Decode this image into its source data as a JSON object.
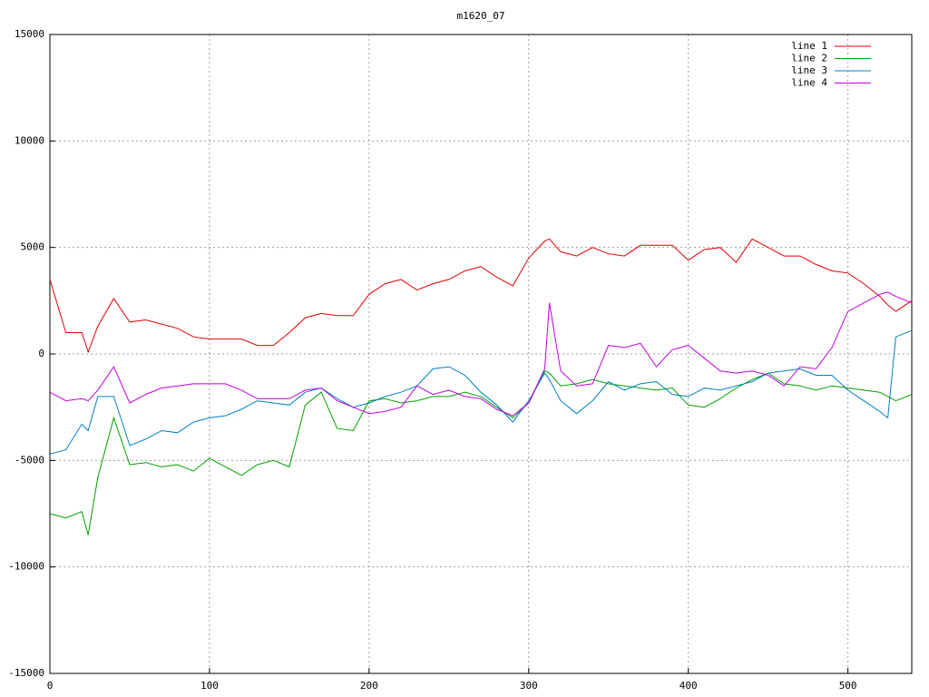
{
  "chart_data": {
    "type": "line",
    "title": "m1620_07",
    "x": [
      0,
      10,
      20,
      24,
      30,
      40,
      50,
      60,
      70,
      80,
      90,
      100,
      110,
      120,
      130,
      140,
      150,
      160,
      170,
      180,
      190,
      200,
      210,
      220,
      230,
      240,
      250,
      260,
      270,
      280,
      290,
      300,
      310,
      313,
      320,
      330,
      340,
      350,
      360,
      370,
      380,
      390,
      400,
      410,
      420,
      430,
      440,
      450,
      460,
      470,
      480,
      490,
      500,
      510,
      520,
      525,
      530,
      540
    ],
    "series": [
      {
        "name": "line 1",
        "color": "#e00000",
        "values": [
          3500,
          1000,
          1000,
          100,
          1300,
          2600,
          1500,
          1600,
          1400,
          1200,
          800,
          700,
          700,
          700,
          400,
          400,
          1000,
          1700,
          1900,
          1800,
          1800,
          2800,
          3300,
          3500,
          3000,
          3300,
          3500,
          3900,
          4100,
          3600,
          3200,
          4500,
          5300,
          5400,
          4800,
          4600,
          5000,
          4700,
          4600,
          5100,
          5100,
          5100,
          4400,
          4900,
          5000,
          4300,
          5400,
          5000,
          4600,
          4600,
          4200,
          3900,
          3800,
          3300,
          2700,
          2300,
          2000,
          2500
        ]
      },
      {
        "name": "line 2",
        "color": "#00a000",
        "values": [
          -7500,
          -7700,
          -7400,
          -8500,
          -5800,
          -3000,
          -5200,
          -5100,
          -5300,
          -5200,
          -5500,
          -4900,
          -5300,
          -5700,
          -5200,
          -5000,
          -5300,
          -2400,
          -1800,
          -3500,
          -3600,
          -2200,
          -2100,
          -2300,
          -2200,
          -2000,
          -2000,
          -1800,
          -2000,
          -2500,
          -3000,
          -2300,
          -800,
          -900,
          -1500,
          -1400,
          -1200,
          -1400,
          -1500,
          -1600,
          -1700,
          -1600,
          -2400,
          -2500,
          -2100,
          -1600,
          -1200,
          -900,
          -1400,
          -1500,
          -1700,
          -1500,
          -1600,
          -1700,
          -1800,
          -2000,
          -2200,
          -1900
        ]
      },
      {
        "name": "line 3",
        "color": "#0080c0",
        "values": [
          -4700,
          -4500,
          -3300,
          -3600,
          -2000,
          -2000,
          -4300,
          -4000,
          -3600,
          -3700,
          -3200,
          -3000,
          -2900,
          -2600,
          -2200,
          -2300,
          -2400,
          -1800,
          -1600,
          -2100,
          -2500,
          -2300,
          -2000,
          -1800,
          -1500,
          -700,
          -600,
          -1000,
          -1800,
          -2400,
          -3200,
          -2200,
          -900,
          -1200,
          -2200,
          -2800,
          -2200,
          -1300,
          -1700,
          -1400,
          -1300,
          -1900,
          -2000,
          -1600,
          -1700,
          -1500,
          -1300,
          -900,
          -800,
          -700,
          -1000,
          -1000,
          -1700,
          -2200,
          -2700,
          -3000,
          800,
          1100
        ]
      },
      {
        "name": "line 4",
        "color": "#c000e0",
        "values": [
          -1800,
          -2200,
          -2100,
          -2200,
          -1700,
          -600,
          -2300,
          -1900,
          -1600,
          -1500,
          -1400,
          -1400,
          -1400,
          -1700,
          -2100,
          -2100,
          -2100,
          -1700,
          -1600,
          -2200,
          -2500,
          -2800,
          -2700,
          -2500,
          -1500,
          -1900,
          -1700,
          -2000,
          -2100,
          -2600,
          -2900,
          -2300,
          -700,
          2400,
          -800,
          -1500,
          -1400,
          400,
          300,
          500,
          -600,
          200,
          400,
          -200,
          -800,
          -900,
          -800,
          -1000,
          -1500,
          -600,
          -700,
          300,
          2000,
          2400,
          2800,
          2900,
          2700,
          2400
        ]
      }
    ],
    "xlim": [
      0,
      540
    ],
    "ylim": [
      -15000,
      15000
    ],
    "xticks": [
      0,
      100,
      200,
      300,
      400,
      500
    ],
    "yticks": [
      -15000,
      -10000,
      -5000,
      0,
      5000,
      10000,
      15000
    ],
    "grid": true,
    "legend": "top-right"
  }
}
